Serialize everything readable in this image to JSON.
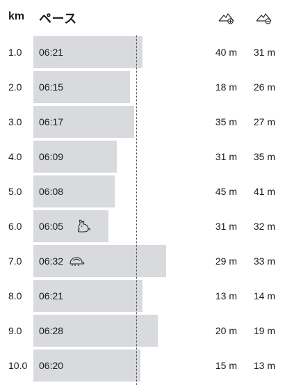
{
  "header": {
    "km_label": "km",
    "pace_label": "ペース",
    "elevation_gain_icon": "mountain-up-icon",
    "elevation_loss_icon": "mountain-down-icon"
  },
  "pace_seconds_axis": {
    "min": 330,
    "max": 411
  },
  "average_pace_seconds": 378,
  "splits": [
    {
      "km": "1.0",
      "pace": "06:21",
      "pace_seconds": 381,
      "gain": "40 m",
      "loss": "31 m",
      "badge": ""
    },
    {
      "km": "2.0",
      "pace": "06:15",
      "pace_seconds": 375,
      "gain": "18 m",
      "loss": "26 m",
      "badge": ""
    },
    {
      "km": "3.0",
      "pace": "06:17",
      "pace_seconds": 377,
      "gain": "35 m",
      "loss": "27 m",
      "badge": ""
    },
    {
      "km": "4.0",
      "pace": "06:09",
      "pace_seconds": 369,
      "gain": "31 m",
      "loss": "35 m",
      "badge": ""
    },
    {
      "km": "5.0",
      "pace": "06:08",
      "pace_seconds": 368,
      "gain": "45 m",
      "loss": "41 m",
      "badge": ""
    },
    {
      "km": "6.0",
      "pace": "06:05",
      "pace_seconds": 365,
      "gain": "31 m",
      "loss": "32 m",
      "badge": "rabbit-icon"
    },
    {
      "km": "7.0",
      "pace": "06:32",
      "pace_seconds": 392,
      "gain": "29 m",
      "loss": "33 m",
      "badge": "turtle-icon"
    },
    {
      "km": "8.0",
      "pace": "06:21",
      "pace_seconds": 381,
      "gain": "13 m",
      "loss": "14 m",
      "badge": ""
    },
    {
      "km": "9.0",
      "pace": "06:28",
      "pace_seconds": 388,
      "gain": "20 m",
      "loss": "19 m",
      "badge": ""
    },
    {
      "km": "10.0",
      "pace": "06:20",
      "pace_seconds": 380,
      "gain": "15 m",
      "loss": "13 m",
      "badge": ""
    }
  ]
}
